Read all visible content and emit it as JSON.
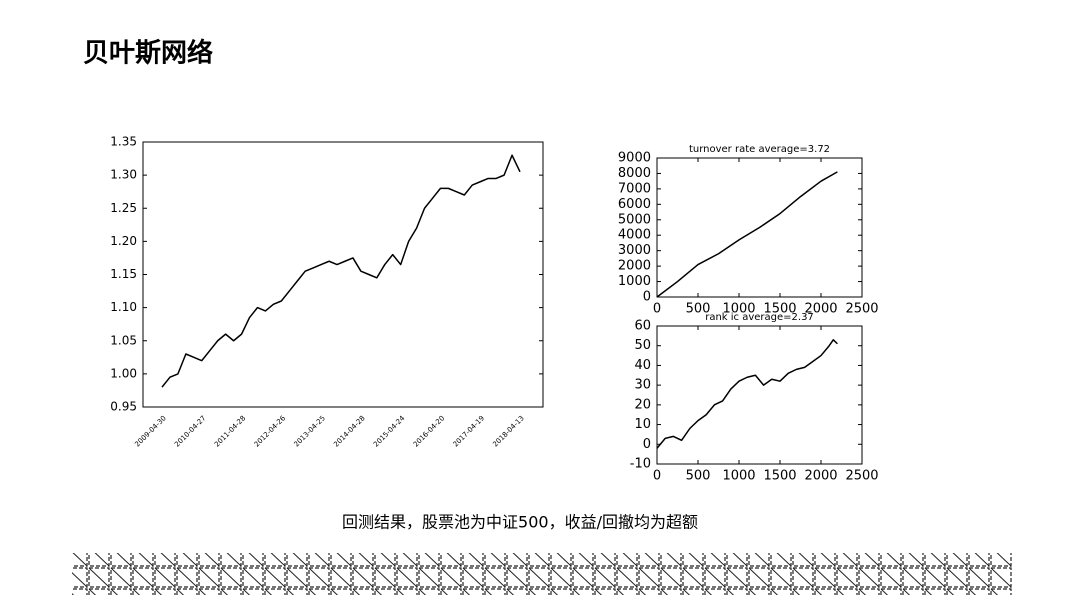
{
  "title": "贝叶斯网络",
  "caption": "回测结果，股票池为中证500，收益/回撤均为超额",
  "chart_data": [
    {
      "type": "line",
      "categories": [
        "2009-04-30",
        null,
        null,
        null,
        null,
        "2010-04-27",
        null,
        null,
        null,
        null,
        "2011-04-28",
        null,
        null,
        null,
        null,
        "2012-04-26",
        null,
        null,
        null,
        null,
        "2013-04-25",
        null,
        null,
        null,
        null,
        "2014-04-28",
        null,
        null,
        null,
        null,
        "2015-04-24",
        null,
        null,
        null,
        null,
        "2016-04-20",
        null,
        null,
        null,
        null,
        "2017-04-19",
        null,
        null,
        null,
        null,
        "2018-04-13"
      ],
      "values": [
        0.98,
        0.995,
        1.0,
        1.03,
        1.025,
        1.02,
        1.035,
        1.05,
        1.06,
        1.05,
        1.06,
        1.085,
        1.1,
        1.095,
        1.105,
        1.11,
        1.125,
        1.14,
        1.155,
        1.16,
        1.165,
        1.17,
        1.165,
        1.17,
        1.175,
        1.155,
        1.15,
        1.145,
        1.165,
        1.18,
        1.165,
        1.2,
        1.22,
        1.25,
        1.265,
        1.28,
        1.28,
        1.275,
        1.27,
        1.285,
        1.29,
        1.295,
        1.295,
        1.3,
        1.33,
        1.305
      ],
      "color": "#000000",
      "ylim": [
        0.95,
        1.35
      ],
      "yticks": [
        0.95,
        {
          "value": 1.0,
          "label": "1.00"
        },
        1.05,
        {
          "value": 1.1,
          "label": "1.10"
        },
        1.15,
        {
          "value": 1.2,
          "label": "1.20"
        },
        1.25,
        {
          "value": 1.3,
          "label": "1.30"
        },
        1.35
      ]
    },
    {
      "type": "line",
      "title": "turnover rate average=3.72",
      "x": [
        0,
        250,
        500,
        750,
        1000,
        1250,
        1500,
        1750,
        2000,
        2200
      ],
      "values": [
        0,
        1000,
        2100,
        2800,
        3700,
        4500,
        5400,
        6500,
        7500,
        8100
      ],
      "color": "#000000",
      "xlim": [
        0,
        2500
      ],
      "xticks": [
        0,
        500,
        1000,
        1500,
        2000,
        2500
      ],
      "ylim": [
        0,
        9000
      ],
      "yticks": [
        0,
        1000,
        2000,
        3000,
        4000,
        5000,
        6000,
        7000,
        8000,
        9000
      ]
    },
    {
      "type": "line",
      "title": "rank ic average=2.37",
      "x": [
        0,
        100,
        200,
        300,
        400,
        500,
        600,
        700,
        800,
        900,
        1000,
        1100,
        1200,
        1300,
        1400,
        1500,
        1600,
        1700,
        1800,
        1900,
        2000,
        2100,
        2150,
        2200
      ],
      "values": [
        -2,
        3,
        4,
        2,
        8,
        12,
        15,
        20,
        22,
        28,
        32,
        34,
        35,
        30,
        33,
        32,
        36,
        38,
        39,
        42,
        45,
        50,
        53,
        51
      ],
      "color": "#000000",
      "xlim": [
        0,
        2500
      ],
      "xticks": [
        0,
        500,
        1000,
        1500,
        2000,
        2500
      ],
      "ylim": [
        -10,
        60
      ],
      "yticks": [
        -10,
        0,
        10,
        20,
        30,
        40,
        50,
        60
      ]
    }
  ]
}
